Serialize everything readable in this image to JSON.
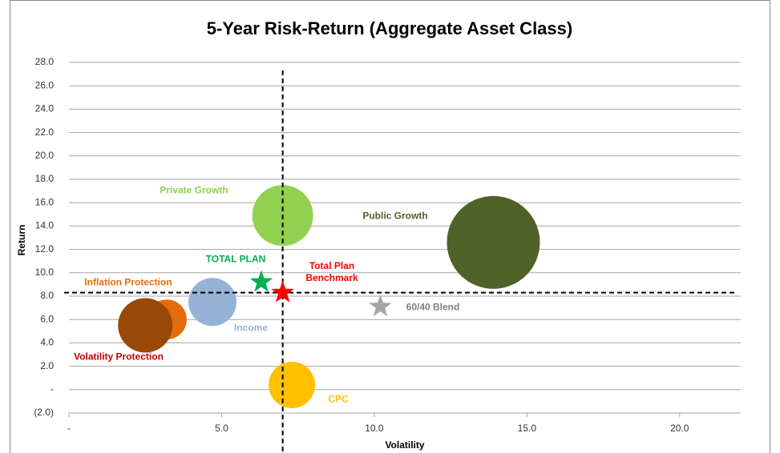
{
  "chart_data": {
    "type": "bubble",
    "title": "5-Year Risk-Return (Aggregate Asset Class)",
    "x_label": "Volatility",
    "y_label": "Return",
    "xlim": [
      0,
      22
    ],
    "ylim": [
      -2,
      28
    ],
    "xticks": [
      {
        "value": 0,
        "label": "-"
      },
      {
        "value": 5,
        "label": "5.0"
      },
      {
        "value": 10,
        "label": "10.0"
      },
      {
        "value": 15,
        "label": "15.0"
      },
      {
        "value": 20,
        "label": "20.0"
      }
    ],
    "yticks": [
      {
        "value": -2,
        "label": "(2.0)"
      },
      {
        "value": 0,
        "label": "-"
      },
      {
        "value": 2,
        "label": "2.0"
      },
      {
        "value": 4,
        "label": "4.0"
      },
      {
        "value": 6,
        "label": "6.0"
      },
      {
        "value": 8,
        "label": "8.0"
      },
      {
        "value": 10,
        "label": "10.0"
      },
      {
        "value": 12,
        "label": "12.0"
      },
      {
        "value": 14,
        "label": "14.0"
      },
      {
        "value": 16,
        "label": "16.0"
      },
      {
        "value": 18,
        "label": "18.0"
      },
      {
        "value": 20,
        "label": "20.0"
      },
      {
        "value": 22,
        "label": "22.0"
      },
      {
        "value": 24,
        "label": "24.0"
      },
      {
        "value": 26,
        "label": "26.0"
      },
      {
        "value": 28,
        "label": "28.0"
      }
    ],
    "grid": true,
    "crosshair": {
      "x": 7.0,
      "y": 8.3
    },
    "series": [
      {
        "name": "Private Growth",
        "marker": "bubble",
        "color": "#92d050",
        "label_color": "#92d050",
        "x": 7.0,
        "y": 14.9,
        "size": 1444
      },
      {
        "name": "Public Growth",
        "marker": "bubble",
        "color": "#4f6228",
        "label_color": "#4f6228",
        "x": 13.9,
        "y": 12.6,
        "size": 3364
      },
      {
        "name": "Inflation Protection",
        "marker": "bubble",
        "color": "#e46c0a",
        "label_color": "#e46c0a",
        "x": 3.2,
        "y": 6.0,
        "size": 625
      },
      {
        "name": "Volatility Protection",
        "marker": "bubble",
        "color": "#984807",
        "label_color": "#c00000",
        "x": 2.5,
        "y": 5.5,
        "size": 1156
      },
      {
        "name": "Income",
        "marker": "bubble",
        "color": "#95b3d7",
        "label_color": "#95b3d7",
        "x": 4.7,
        "y": 7.5,
        "size": 900
      },
      {
        "name": "CPC",
        "marker": "bubble",
        "color": "#ffc000",
        "label_color": "#ffc000",
        "x": 7.3,
        "y": 0.4,
        "size": 841
      },
      {
        "name": "TOTAL PLAN",
        "marker": "star",
        "color": "#00b050",
        "label_color": "#00b050",
        "x": 6.3,
        "y": 9.2
      },
      {
        "name": "Total Plan Benchmark",
        "marker": "star",
        "color": "#ff0000",
        "label_color": "#ff0000",
        "x": 7.0,
        "y": 8.3
      },
      {
        "name": "60/40 Blend",
        "marker": "star",
        "color": "#a6a6a6",
        "label_color": "#7f7f7f",
        "x": 10.2,
        "y": 7.1
      }
    ]
  }
}
